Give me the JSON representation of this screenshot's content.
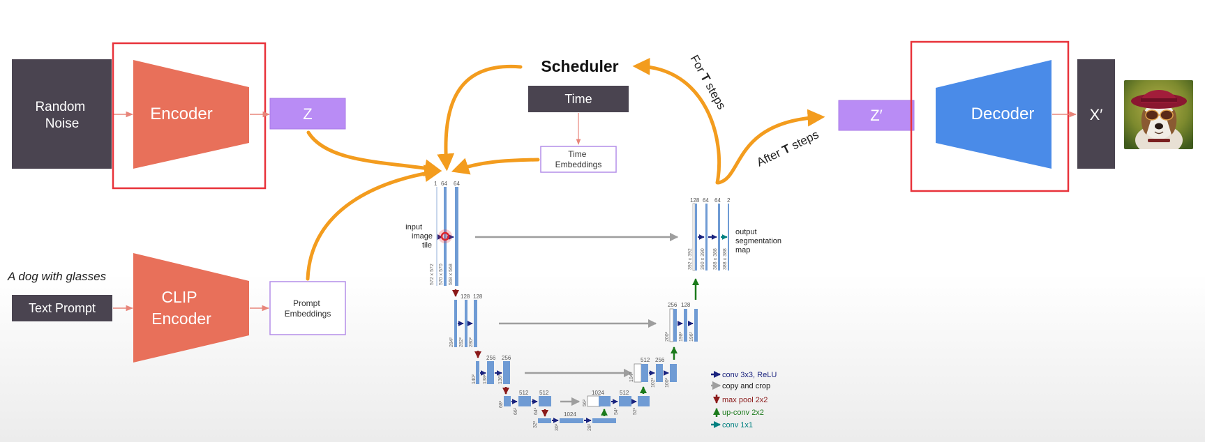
{
  "blocks": {
    "random_noise": [
      "Random",
      "Noise"
    ],
    "encoder": "Encoder",
    "z": "Z",
    "text_caption": "A dog with glasses",
    "text_prompt": "Text Prompt",
    "clip_encoder": [
      "CLIP",
      "Encoder"
    ],
    "prompt_embeddings": [
      "Prompt",
      "Embeddings"
    ],
    "scheduler": "Scheduler",
    "time": "Time",
    "time_embeddings": [
      "Time",
      "Embeddings"
    ],
    "for_t_steps": [
      "For ",
      "T",
      " steps"
    ],
    "after_t_steps": [
      "After ",
      "T",
      " steps"
    ],
    "z_prime": "Z′",
    "decoder": "Decoder",
    "x_prime": "X′"
  },
  "unet": {
    "input_label": [
      "input",
      "image",
      "tile"
    ],
    "output_label": [
      "output",
      "segmentation",
      "map"
    ],
    "channels": {
      "l1": [
        "1",
        "64",
        "64"
      ],
      "l2": [
        "128",
        "128"
      ],
      "l3": [
        "256",
        "256"
      ],
      "l4": [
        "512",
        "512"
      ],
      "bottom": "1024",
      "u4": [
        "1024",
        "512"
      ],
      "u3": [
        "512",
        "256"
      ],
      "u2": [
        "256",
        "128"
      ],
      "u1": [
        "128",
        "64",
        "64",
        "2"
      ]
    },
    "sizes": {
      "l1": [
        "572 x 572",
        "570 x 570",
        "568 x 568"
      ],
      "l2": [
        "284²",
        "282²",
        "280²"
      ],
      "l3": [
        "140²",
        "138²",
        "136²"
      ],
      "l4": [
        "68²",
        "66²",
        "64²"
      ],
      "bottom": [
        "32²",
        "30²",
        "28²"
      ],
      "u4": [
        "56²",
        "54²",
        "52²"
      ],
      "u3": [
        "104²",
        "102²",
        "100²"
      ],
      "u2": [
        "200²",
        "198²",
        "196²"
      ],
      "u1": [
        "392 x 392",
        "390 x 390",
        "388 x 388",
        "388 x 388"
      ]
    },
    "legend": {
      "conv": "conv 3x3, ReLU",
      "copy": "copy and crop",
      "maxpool": "max pool 2x2",
      "upconv": "up-conv 2x2",
      "conv1x1": "conv 1x1"
    }
  },
  "colors": {
    "dark_box": "#4a4450",
    "encoder": "#e8705a",
    "purple": "#b98cf5",
    "purple_border": "#b48ee8",
    "decoder": "#4a8be8",
    "orange": "#f39c1e",
    "highlight": "#e8323a",
    "unet_blue": "#6f9bd4",
    "legend_conv": "#1a237e",
    "legend_copy": "#9e9e9e",
    "legend_maxpool": "#8b1a1a",
    "legend_upconv": "#1b7a1b",
    "legend_conv1x1": "#008080"
  },
  "icons": {
    "output_image": "dog-with-glasses-photo",
    "cursor_marker": "red-circle-cursor-icon"
  }
}
